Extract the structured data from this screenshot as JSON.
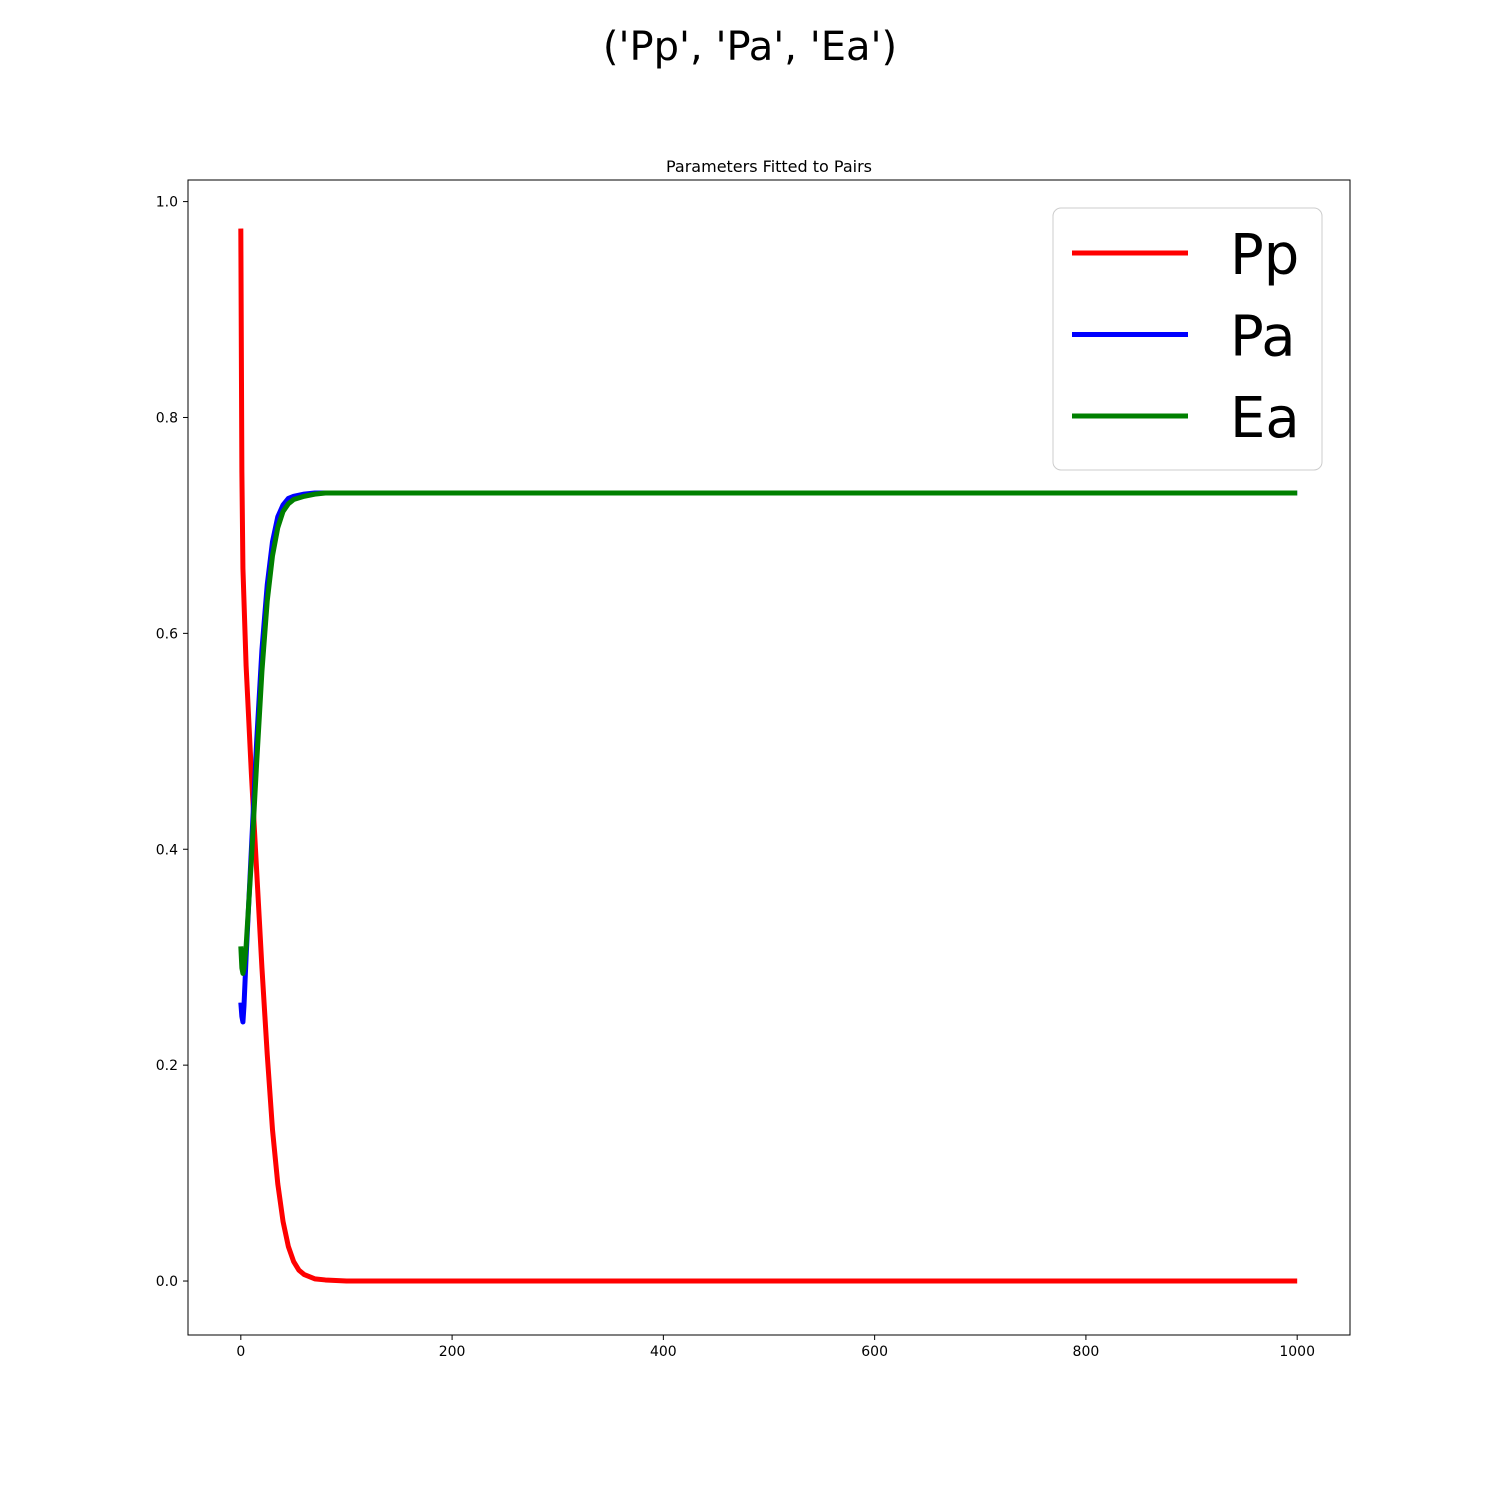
{
  "figure": {
    "suptitle": "('Pp', 'Pa', 'Ea')"
  },
  "chart_data": {
    "type": "line",
    "title": "Parameters Fitted to Pairs",
    "xlabel": "",
    "ylabel": "",
    "xlim": [
      -50,
      1050
    ],
    "ylim": [
      -0.05,
      1.02
    ],
    "xticks": [
      0,
      200,
      400,
      600,
      800,
      1000
    ],
    "xtick_labels": [
      "0",
      "200",
      "400",
      "600",
      "800",
      "1000"
    ],
    "yticks": [
      0.0,
      0.2,
      0.4,
      0.6,
      0.8,
      1.0
    ],
    "ytick_labels": [
      "0.0",
      "0.2",
      "0.4",
      "0.6",
      "0.8",
      "1.0"
    ],
    "grid": false,
    "legend_position": "top-right",
    "series": [
      {
        "name": "Pp",
        "color": "#ff0000",
        "x": [
          0,
          1,
          2,
          5,
          10,
          15,
          20,
          25,
          30,
          35,
          40,
          45,
          50,
          55,
          60,
          70,
          80,
          100,
          200,
          400,
          600,
          800,
          1000
        ],
        "y": [
          0.975,
          0.75,
          0.66,
          0.57,
          0.47,
          0.38,
          0.29,
          0.21,
          0.14,
          0.09,
          0.055,
          0.032,
          0.018,
          0.01,
          0.006,
          0.002,
          0.001,
          0.0,
          0.0,
          0.0,
          0.0,
          0.0,
          0.0
        ]
      },
      {
        "name": "Pa",
        "color": "#0000ff",
        "x": [
          0,
          1,
          2,
          3,
          5,
          10,
          15,
          20,
          25,
          30,
          35,
          40,
          45,
          50,
          60,
          70,
          80,
          100,
          200,
          400,
          600,
          800,
          1000
        ],
        "y": [
          0.258,
          0.245,
          0.24,
          0.255,
          0.3,
          0.4,
          0.5,
          0.585,
          0.645,
          0.685,
          0.708,
          0.719,
          0.725,
          0.727,
          0.729,
          0.73,
          0.73,
          0.73,
          0.73,
          0.73,
          0.73,
          0.73,
          0.73
        ]
      },
      {
        "name": "Ea",
        "color": "#008000",
        "x": [
          0,
          1,
          2,
          3,
          5,
          10,
          15,
          20,
          25,
          30,
          35,
          40,
          45,
          50,
          60,
          70,
          80,
          100,
          200,
          400,
          600,
          800,
          1000
        ],
        "y": [
          0.31,
          0.29,
          0.285,
          0.29,
          0.31,
          0.39,
          0.48,
          0.565,
          0.63,
          0.672,
          0.698,
          0.713,
          0.72,
          0.724,
          0.727,
          0.729,
          0.73,
          0.73,
          0.73,
          0.73,
          0.73,
          0.73,
          0.73
        ]
      }
    ]
  }
}
